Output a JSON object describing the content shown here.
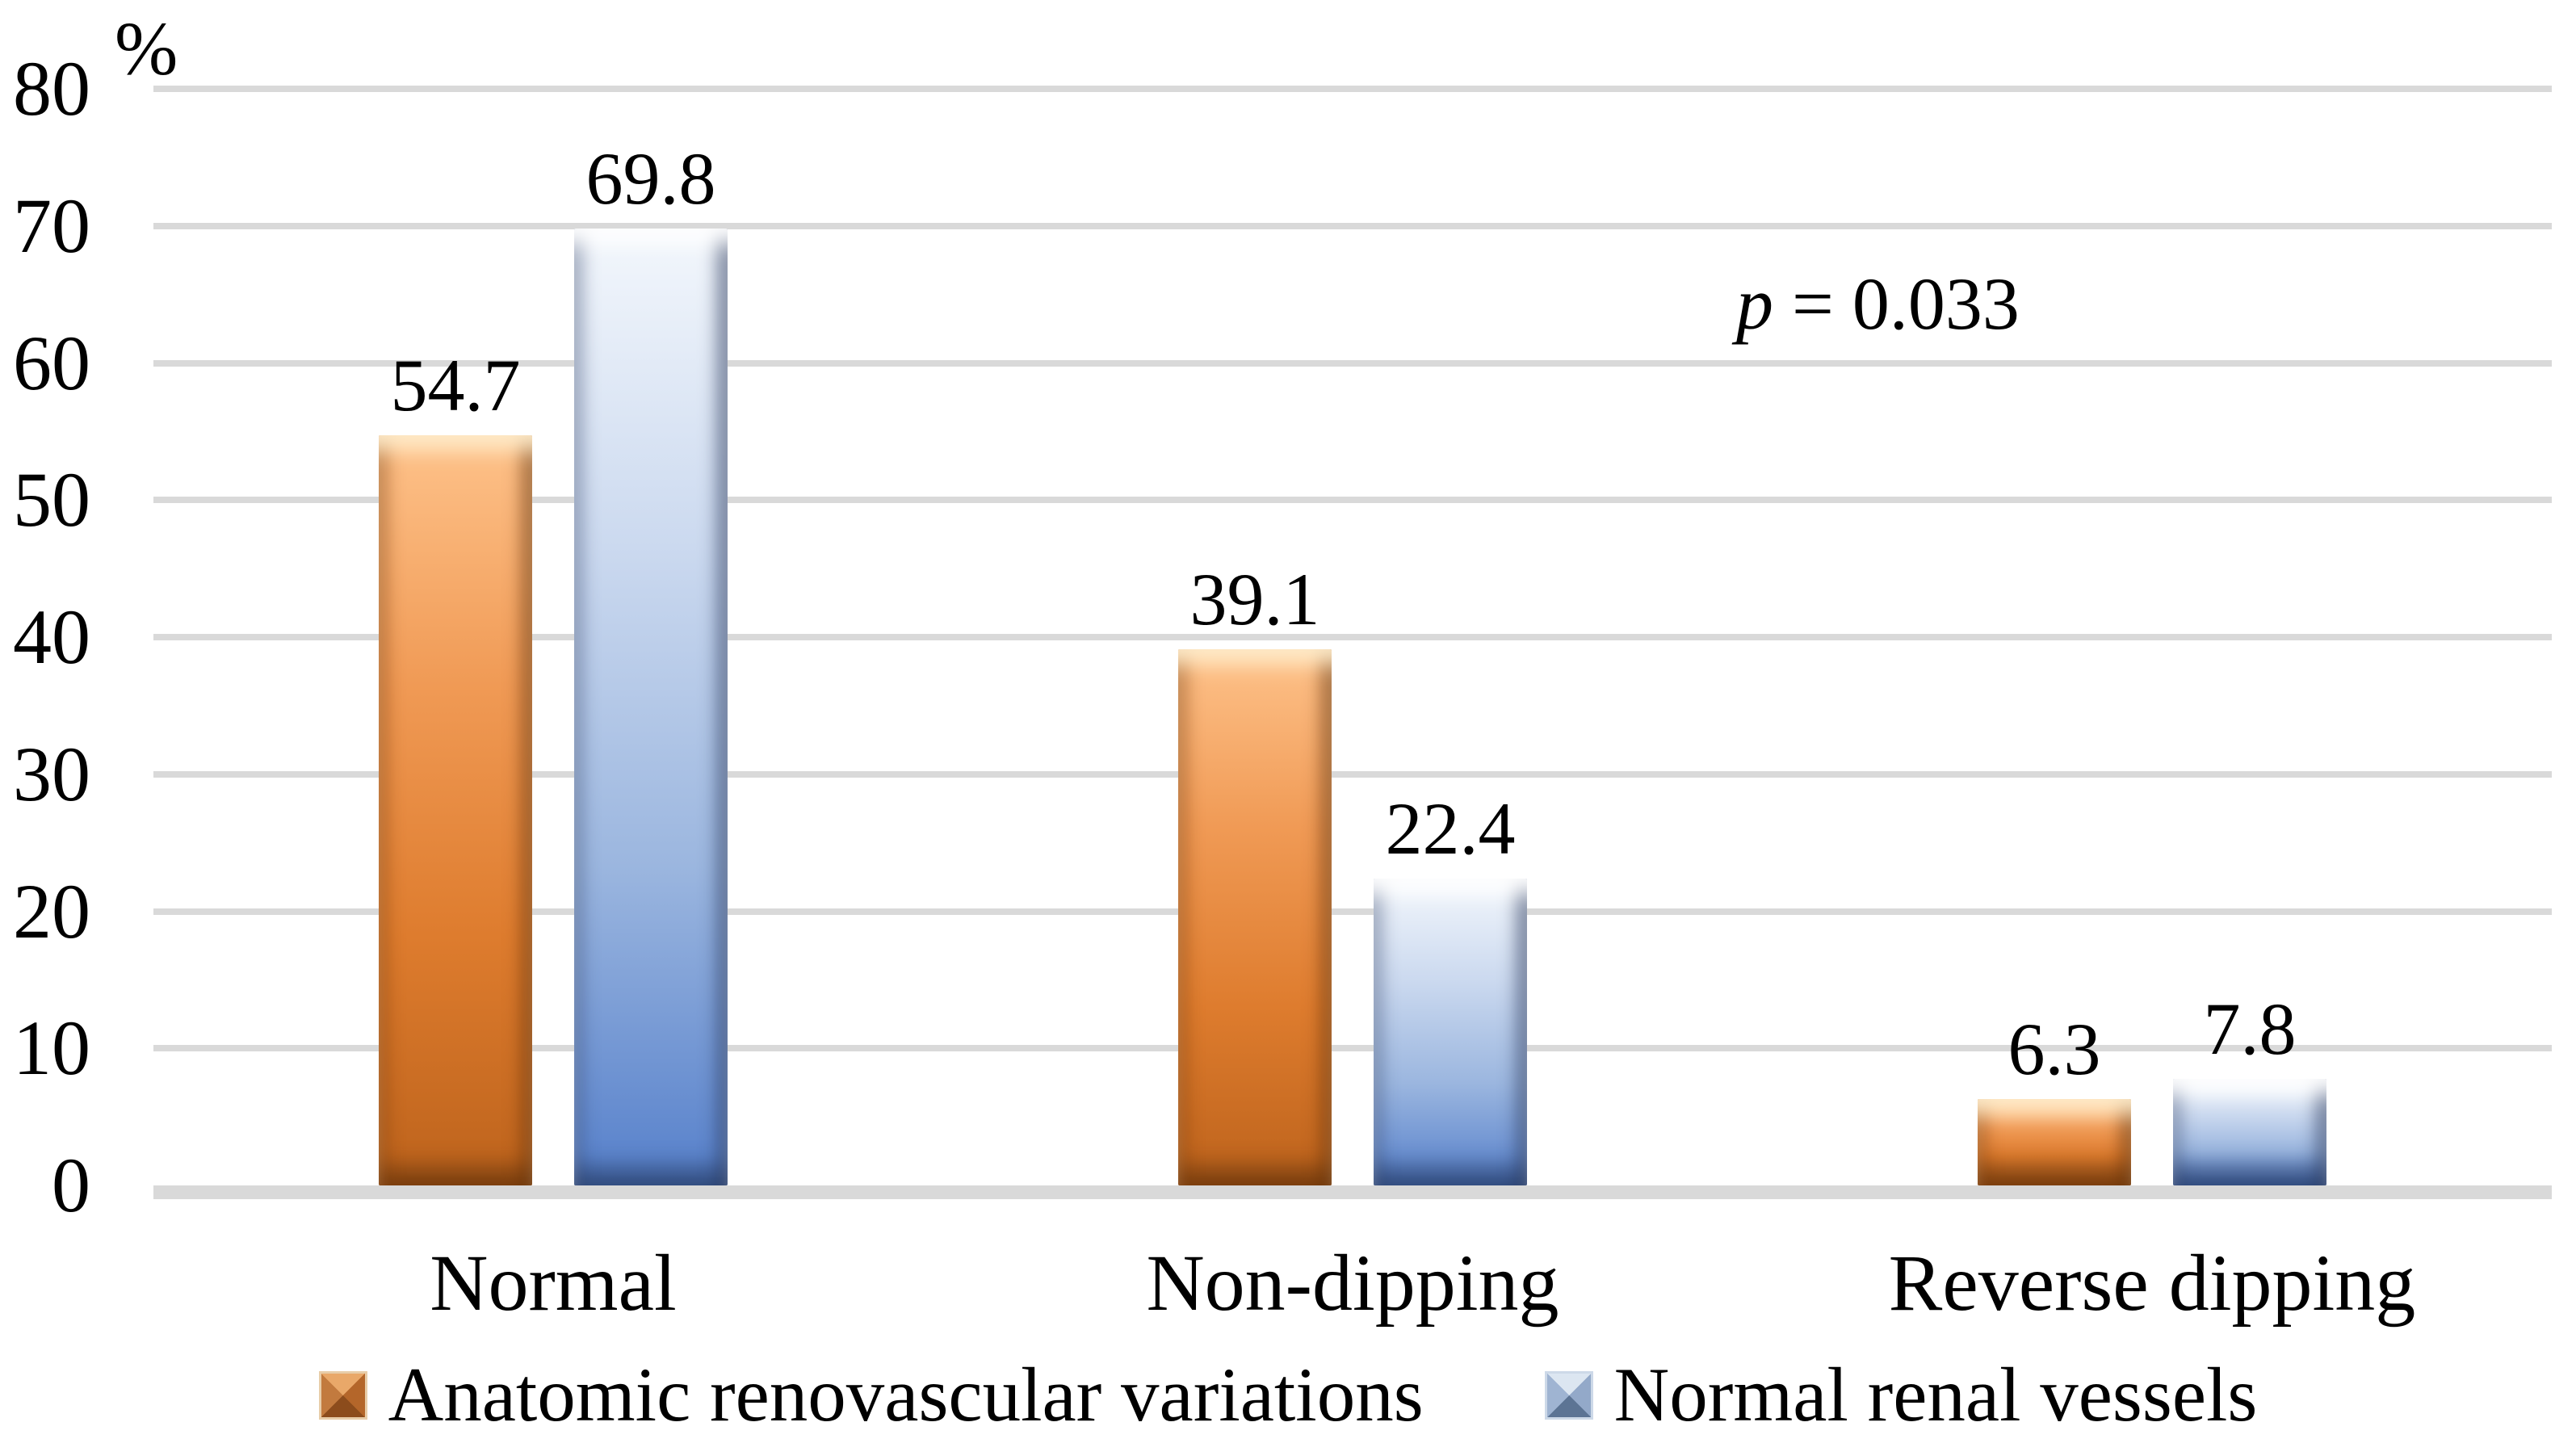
{
  "chart_data": {
    "type": "bar",
    "title": "",
    "ylabel": "%",
    "ylim": [
      0,
      80
    ],
    "yticks": [
      0,
      10,
      20,
      30,
      40,
      50,
      60,
      70,
      80
    ],
    "grid": true,
    "legend_position": "bottom",
    "categories": [
      "Normal",
      "Non-dipping",
      "Reverse dipping"
    ],
    "series": [
      {
        "name": "Anatomic renovascular variations",
        "values": [
          54.7,
          39.1,
          6.3
        ],
        "color": "#E07E30",
        "gradient": [
          "#FEC28A",
          "#F09A55",
          "#DE7C2E",
          "#BD631C"
        ],
        "marker": {
          "top": "#E9A869",
          "right": "#B4662A",
          "bottom": "#8C4C1C",
          "left": "#C27A3E",
          "border": "#E8CDA9"
        }
      },
      {
        "name": "Normal renal vessels",
        "values": [
          69.8,
          22.4,
          7.8
        ],
        "color": "#5680CB",
        "gradient": [
          "#F3F7FC",
          "#CBD9EF",
          "#9BB6DF",
          "#5680CB"
        ],
        "marker": {
          "top": "#DCE6F1",
          "right": "#93A9C9",
          "bottom": "#5C7494",
          "left": "#9FB4D2",
          "border": "#CDD9E8"
        }
      }
    ],
    "data_labels": [
      "54.7",
      "39.1",
      "6.3",
      "69.8",
      "22.4",
      "7.8"
    ],
    "annotation": {
      "symbol": "p",
      "text": "= 0.033"
    }
  },
  "colors": {
    "background": "#FFFFFF",
    "gridline": "#D9D9D9",
    "text": "#000000"
  }
}
